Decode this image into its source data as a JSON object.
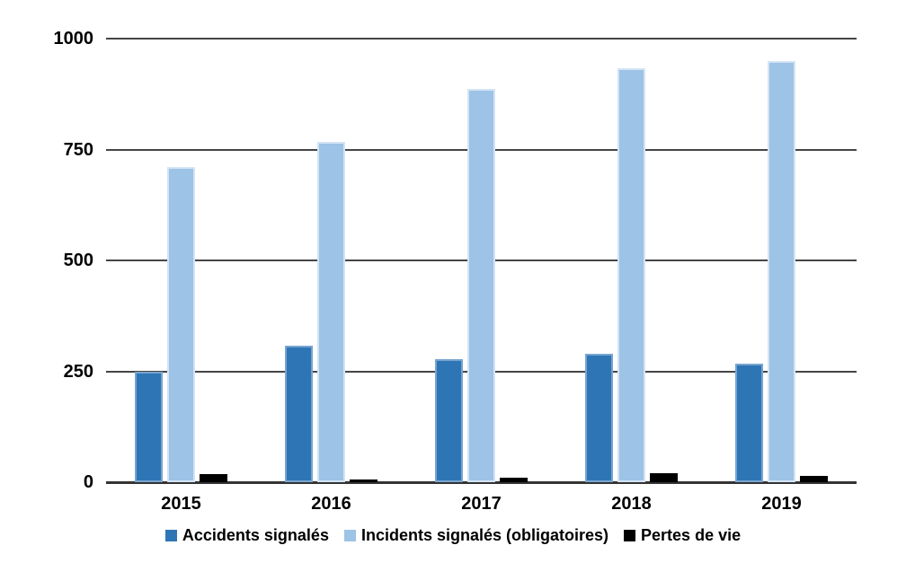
{
  "chart_data": {
    "type": "bar",
    "title": "",
    "xlabel": "",
    "ylabel": "",
    "categories": [
      "2015",
      "2016",
      "2017",
      "2018",
      "2019"
    ],
    "series": [
      {
        "name": "Accidents signalés",
        "color": "#2E75B6",
        "values": [
          250,
          308,
          278,
          290,
          267
        ]
      },
      {
        "name": "Incidents signalés (obligatoires)",
        "color": "#9DC3E6",
        "values": [
          710,
          767,
          887,
          933,
          949
        ]
      },
      {
        "name": "Pertes de vie",
        "color": "#000000",
        "values": [
          19,
          6,
          11,
          21,
          14
        ]
      }
    ],
    "ylim": [
      0,
      1000
    ],
    "yticks": [
      0,
      250,
      500,
      750,
      1000
    ],
    "grid": "horizontal",
    "legend_position": "bottom"
  },
  "colors": {
    "background": "#ffffff",
    "gridline": "#454545",
    "axisline": "#333333",
    "text": "#000000"
  }
}
